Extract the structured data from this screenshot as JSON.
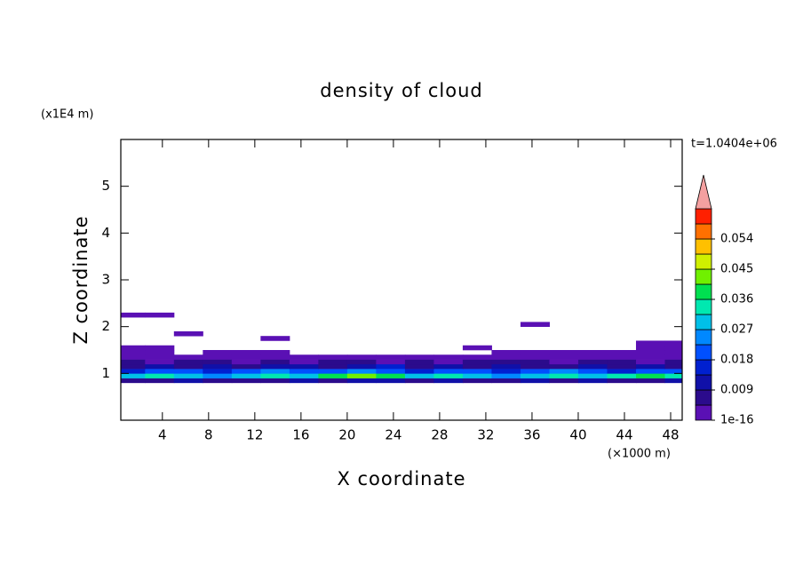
{
  "chart_data": {
    "type": "contourf",
    "title": "density of cloud",
    "x_label": "X coordinate",
    "y_label": "Z coordinate",
    "x_unit": "(×1000 m)",
    "y_unit": "(x1E4 m)",
    "annotation": "t=1.0404e+06",
    "xlim": [
      0.4,
      49.0
    ],
    "ylim": [
      0,
      6
    ],
    "xticks": [
      4,
      8,
      12,
      16,
      20,
      24,
      28,
      32,
      36,
      40,
      44,
      48
    ],
    "yticks": [
      1,
      2,
      3,
      4,
      5
    ],
    "x": [
      1.25,
      3.75,
      6.25,
      8.75,
      11.25,
      13.75,
      16.25,
      18.75,
      21.25,
      23.75,
      26.25,
      28.75,
      31.25,
      33.75,
      36.25,
      38.75,
      41.25,
      43.75,
      46.25,
      48.75
    ],
    "z": [
      0.85,
      0.95,
      1.05,
      1.15,
      1.25,
      1.35,
      1.45,
      1.55,
      1.65,
      1.75,
      1.85,
      1.95,
      2.05,
      2.15,
      2.25
    ],
    "values": [
      [
        0.007,
        0.007,
        0.011,
        0.007,
        0.007,
        0.007,
        0.011,
        0.007,
        0.011,
        0.011,
        0.007,
        0.011,
        0.007,
        0.007,
        0.011,
        0.007,
        0.011,
        0.007,
        0.007,
        0.011
      ],
      [
        0.029,
        0.034,
        0.029,
        0.025,
        0.029,
        0.034,
        0.029,
        0.038,
        0.043,
        0.038,
        0.029,
        0.034,
        0.029,
        0.025,
        0.029,
        0.034,
        0.029,
        0.034,
        0.038,
        0.034
      ],
      [
        0.016,
        0.02,
        0.02,
        0.016,
        0.02,
        0.025,
        0.02,
        0.02,
        0.025,
        0.02,
        0.016,
        0.02,
        0.02,
        0.016,
        0.02,
        0.025,
        0.02,
        0.016,
        0.02,
        0.02
      ],
      [
        0.007,
        0.011,
        0.007,
        0.011,
        0.007,
        0.011,
        0.011,
        0.007,
        0.011,
        0.016,
        0.007,
        0.011,
        0.007,
        0.011,
        0.007,
        0.007,
        0.011,
        0.007,
        0.011,
        0.007
      ],
      [
        0.007,
        0.002,
        0.007,
        0.007,
        0.002,
        0.007,
        0.002,
        0.007,
        0.007,
        0.002,
        0.007,
        0.002,
        0.007,
        0.007,
        0.007,
        0.002,
        0.007,
        0.007,
        0.002,
        0.007
      ],
      [
        0.002,
        0.002,
        0.002,
        0.002,
        0.002,
        0.002,
        0.002,
        0.002,
        0.002,
        0.002,
        0.002,
        0.002,
        0.002,
        0.002,
        0.002,
        0.002,
        0.002,
        0.002,
        0.002,
        0.002
      ],
      [
        0.002,
        0.002,
        null,
        0.002,
        0.002,
        0.002,
        null,
        null,
        null,
        null,
        null,
        null,
        null,
        0.002,
        0.002,
        0.002,
        0.002,
        0.002,
        0.002,
        0.002
      ],
      [
        0.002,
        0.002,
        null,
        null,
        null,
        null,
        null,
        null,
        null,
        null,
        null,
        null,
        0.002,
        null,
        null,
        null,
        null,
        null,
        0.002,
        0.002
      ],
      [
        null,
        null,
        null,
        null,
        null,
        null,
        null,
        null,
        null,
        null,
        null,
        null,
        null,
        null,
        null,
        null,
        null,
        null,
        0.002,
        0.002
      ],
      [
        null,
        null,
        null,
        null,
        null,
        0.002,
        null,
        null,
        null,
        null,
        null,
        null,
        null,
        null,
        null,
        null,
        null,
        null,
        null,
        null
      ],
      [
        null,
        null,
        0.002,
        null,
        null,
        null,
        null,
        null,
        null,
        null,
        null,
        null,
        null,
        null,
        null,
        null,
        null,
        null,
        null,
        null
      ],
      [
        null,
        null,
        null,
        null,
        null,
        null,
        null,
        null,
        null,
        null,
        null,
        null,
        null,
        null,
        null,
        null,
        null,
        null,
        null,
        null
      ],
      [
        null,
        null,
        null,
        null,
        null,
        null,
        null,
        null,
        null,
        null,
        null,
        null,
        null,
        null,
        0.002,
        null,
        null,
        null,
        null,
        null
      ],
      [
        null,
        null,
        null,
        null,
        null,
        null,
        null,
        null,
        null,
        null,
        null,
        null,
        null,
        null,
        null,
        null,
        null,
        null,
        null,
        null
      ],
      [
        0.002,
        0.002,
        null,
        null,
        null,
        null,
        null,
        null,
        null,
        null,
        null,
        null,
        null,
        null,
        null,
        null,
        null,
        null,
        null,
        null
      ]
    ],
    "colorbar": {
      "levels": [
        1e-16,
        0.0045,
        0.009,
        0.0135,
        0.018,
        0.0225,
        0.027,
        0.0315,
        0.036,
        0.0405,
        0.045,
        0.0495,
        0.054,
        0.0585,
        0.063
      ],
      "colors": [
        "#5a10b4",
        "#2b0b8c",
        "#1010a8",
        "#0020d0",
        "#0050ff",
        "#0088ff",
        "#00c0e8",
        "#00e8b0",
        "#00e050",
        "#70f000",
        "#d0f000",
        "#ffc000",
        "#ff7000",
        "#ff2000"
      ],
      "extend_color": "#f4a0a0",
      "ticks": [
        {
          "value": 1e-16,
          "label": "1e-16"
        },
        0.009,
        0.018,
        0.027,
        0.036,
        0.045,
        0.054
      ]
    }
  }
}
